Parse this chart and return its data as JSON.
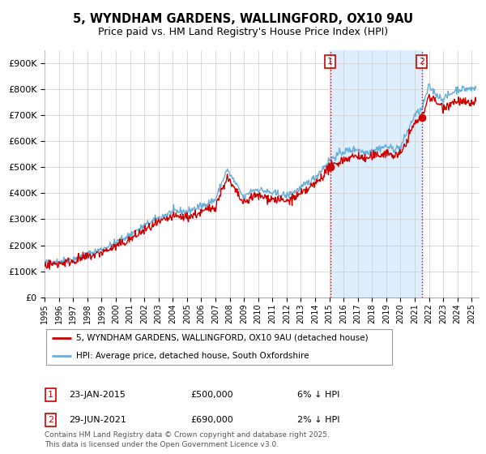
{
  "title": "5, WYNDHAM GARDENS, WALLINGFORD, OX10 9AU",
  "subtitle": "Price paid vs. HM Land Registry's House Price Index (HPI)",
  "legend_label_red": "5, WYNDHAM GARDENS, WALLINGFORD, OX10 9AU (detached house)",
  "legend_label_blue": "HPI: Average price, detached house, South Oxfordshire",
  "sale1_date": "23-JAN-2015",
  "sale1_price": "£500,000",
  "sale1_hpi": "6% ↓ HPI",
  "sale1_year": 2015.06,
  "sale1_value": 500000,
  "sale2_date": "29-JUN-2021",
  "sale2_price": "£690,000",
  "sale2_hpi": "2% ↓ HPI",
  "sale2_year": 2021.49,
  "sale2_value": 690000,
  "yticks": [
    0,
    100000,
    200000,
    300000,
    400000,
    500000,
    600000,
    700000,
    800000,
    900000
  ],
  "ytick_labels": [
    "£0",
    "£100K",
    "£200K",
    "£300K",
    "£400K",
    "£500K",
    "£600K",
    "£700K",
    "£800K",
    "£900K"
  ],
  "xmin": 1995,
  "xmax": 2025.5,
  "ymin": 0,
  "ymax": 950000,
  "red_color": "#cc0000",
  "blue_color": "#6baed6",
  "shade_color": "#ddeeff",
  "grid_color": "#cccccc",
  "footer": "Contains HM Land Registry data © Crown copyright and database right 2025.\nThis data is licensed under the Open Government Licence v3.0."
}
